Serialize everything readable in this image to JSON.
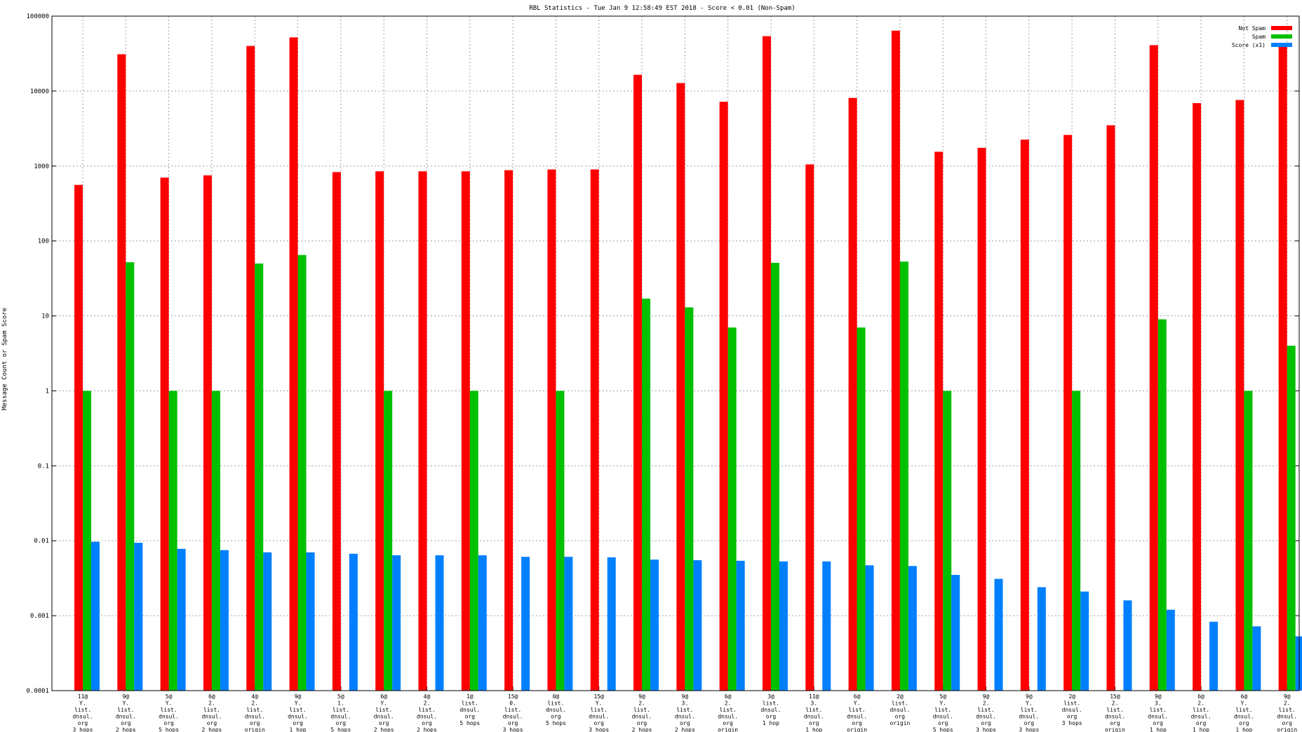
{
  "chart_data": {
    "type": "bar",
    "title": "RBL Statistics - Tue Jan  9 12:58:49 EST 2018 - Score < 0.01 (Non-Spam)",
    "ylabel": "Message Count or Spam Score",
    "xlabel": "",
    "yscale": "log",
    "ylim": [
      0.0001,
      100000
    ],
    "yticks": [
      "0.0001",
      "0.001",
      "0.01",
      "0.1",
      "1",
      "10",
      "100",
      "1000",
      "10000",
      "100000"
    ],
    "grid": true,
    "legend_position": "top-right",
    "colors": {
      "Not Spam": "#ff0000",
      "Spam": "#00c000",
      "Score (x1)": "#0080ff"
    },
    "categories": [
      [
        "11@",
        "Y.",
        "list.",
        "dnsul.",
        "org",
        "3 hops"
      ],
      [
        "9@",
        "Y.",
        "list.",
        "dnsul.",
        "org",
        "2 hops"
      ],
      [
        "5@",
        "Y.",
        "list.",
        "dnsul.",
        "org",
        "5 hops"
      ],
      [
        "6@",
        "2.",
        "list.",
        "dnsul.",
        "org",
        "2 hops"
      ],
      [
        "4@",
        "2.",
        "list.",
        "dnsul.",
        "org",
        "origin"
      ],
      [
        "9@",
        "Y.",
        "list.",
        "dnsul.",
        "org",
        "1 hop"
      ],
      [
        "5@",
        "1.",
        "list.",
        "dnsul.",
        "org",
        "5 hops"
      ],
      [
        "6@",
        "Y.",
        "list.",
        "dnsul.",
        "org",
        "2 hops"
      ],
      [
        "4@",
        "2.",
        "list.",
        "dnsul.",
        "org",
        "2 hops"
      ],
      [
        "1@",
        "list.",
        "dnsul.",
        "org",
        "5 hops"
      ],
      [
        "15@",
        "0.",
        "list.",
        "dnsul.",
        "org",
        "3 hops"
      ],
      [
        "0@",
        "list.",
        "dnsul.",
        "org",
        "5 hops"
      ],
      [
        "15@",
        "Y.",
        "list.",
        "dnsul.",
        "org",
        "3 hops"
      ],
      [
        "9@",
        "2.",
        "list.",
        "dnsul.",
        "org",
        "2 hops"
      ],
      [
        "9@",
        "3.",
        "list.",
        "dnsul.",
        "org",
        "2 hops"
      ],
      [
        "6@",
        "2.",
        "list.",
        "dnsul.",
        "org",
        "origin"
      ],
      [
        "3@",
        "list.",
        "dnsul.",
        "org",
        "1 hop"
      ],
      [
        "11@",
        "3.",
        "list.",
        "dnsul.",
        "org",
        "1 hop"
      ],
      [
        "6@",
        "Y.",
        "list.",
        "dnsul.",
        "org",
        "origin"
      ],
      [
        "2@",
        "list.",
        "dnsul.",
        "org",
        "origin"
      ],
      [
        "5@",
        "Y.",
        "list.",
        "dnsul.",
        "org",
        "5 hops"
      ],
      [
        "9@",
        "2.",
        "list.",
        "dnsul.",
        "org",
        "3 hops"
      ],
      [
        "9@",
        "Y.",
        "list.",
        "dnsul.",
        "org",
        "3 hops"
      ],
      [
        "2@",
        "list.",
        "dnsul.",
        "org",
        "3 hops"
      ],
      [
        "15@",
        "2.",
        "list.",
        "dnsul.",
        "org",
        "origin"
      ],
      [
        "9@",
        "3.",
        "list.",
        "dnsul.",
        "org",
        "1 hop"
      ],
      [
        "6@",
        "2.",
        "list.",
        "dnsul.",
        "org",
        "1 hop"
      ],
      [
        "6@",
        "Y.",
        "list.",
        "dnsul.",
        "org",
        "1 hop"
      ],
      [
        "9@",
        "2.",
        "list.",
        "dnsul.",
        "org",
        "origin"
      ]
    ],
    "series": [
      {
        "name": "Not Spam",
        "values": [
          560,
          31000,
          700,
          750,
          40000,
          52000,
          830,
          850,
          850,
          850,
          880,
          900,
          900,
          16500,
          12800,
          7200,
          54000,
          1050,
          8100,
          64000,
          1550,
          1750,
          2250,
          2600,
          3500,
          41000,
          6900,
          7600,
          43000
        ]
      },
      {
        "name": "Spam",
        "values": [
          1,
          52,
          1,
          1,
          50,
          65,
          0,
          1,
          0,
          1,
          0,
          1,
          0,
          17,
          13,
          7,
          51,
          0,
          7,
          53,
          1,
          0,
          0,
          1,
          0,
          9,
          0,
          1,
          4
        ]
      },
      {
        "name": "Score (x1)",
        "values": [
          0.0097,
          0.0094,
          0.0078,
          0.0075,
          0.007,
          0.007,
          0.0067,
          0.0064,
          0.0064,
          0.0064,
          0.0061,
          0.0061,
          0.006,
          0.0056,
          0.0055,
          0.0054,
          0.0053,
          0.0053,
          0.0047,
          0.0046,
          0.0035,
          0.0031,
          0.0024,
          0.0021,
          0.0016,
          0.0012,
          0.00083,
          0.00072,
          0.00053
        ]
      }
    ]
  }
}
